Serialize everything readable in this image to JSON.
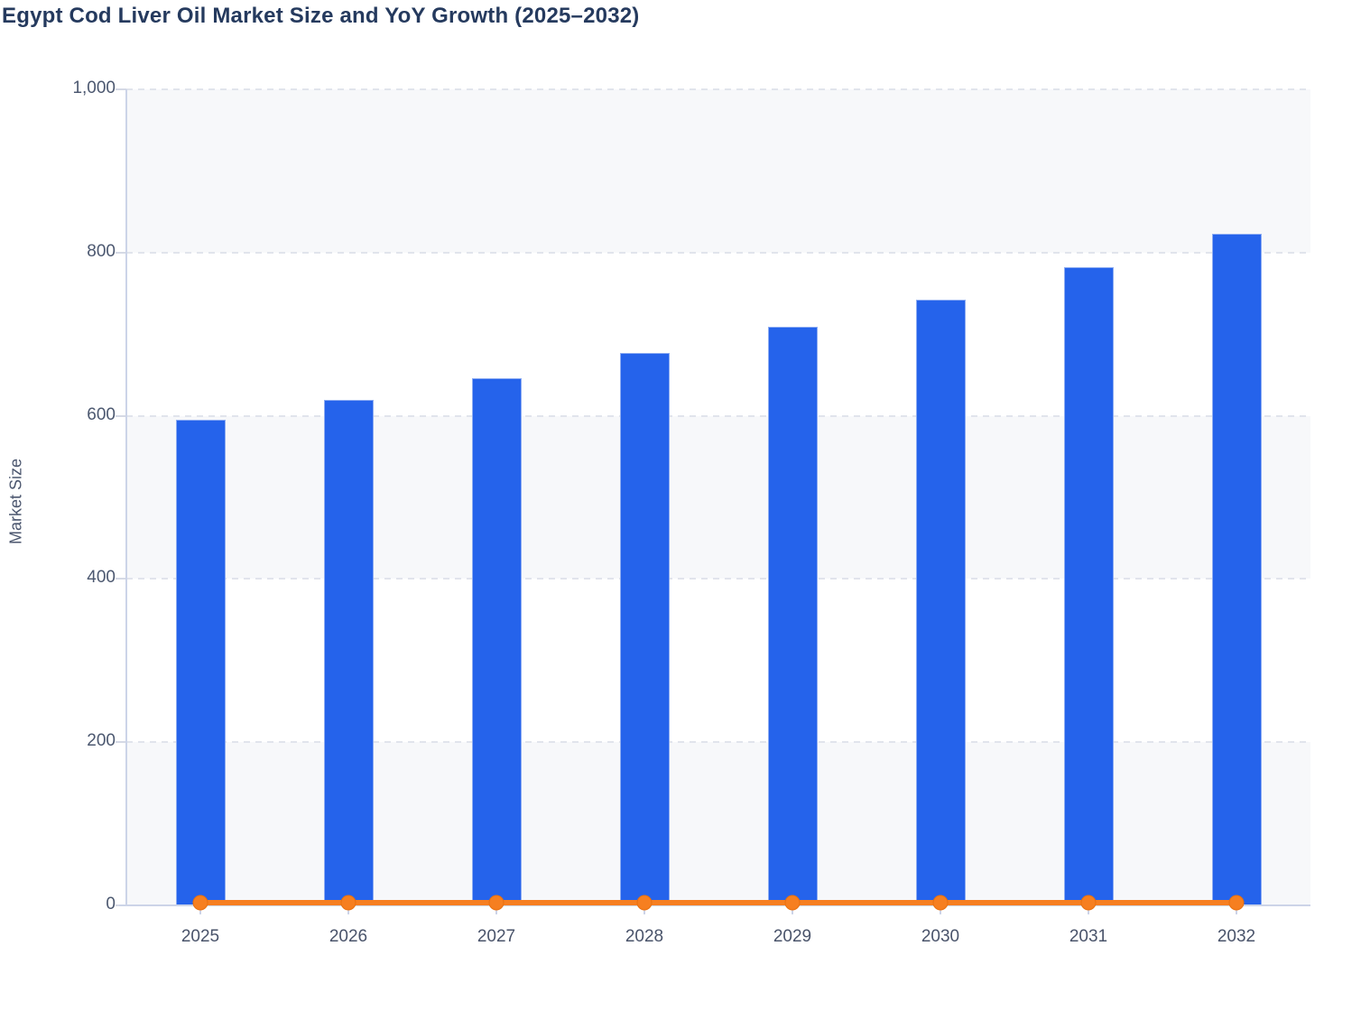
{
  "page": {
    "title": "Egypt Cod Liver Oil Market Size and YoY Growth (2025–2032)"
  },
  "chart_data": {
    "type": "bar",
    "title": "Egypt Cod Liver Oil Market Size and YoY Growth (2025–2032)",
    "xlabel": "",
    "ylabel": "Market Size",
    "categories": [
      "2025",
      "2026",
      "2027",
      "2028",
      "2029",
      "2030",
      "2031",
      "2032"
    ],
    "series": [
      {
        "name": "Market Size",
        "type": "bar",
        "color": "#2563eb",
        "values": [
          595,
          619,
          646,
          677,
          709,
          742,
          782,
          823
        ]
      },
      {
        "name": "YoY Growth",
        "type": "line",
        "color": "#f67f20",
        "marker": "circle",
        "values": [
          0,
          0,
          0,
          0,
          0,
          0,
          0,
          0
        ]
      }
    ],
    "ylim": [
      0,
      1000
    ],
    "yticks": [
      0,
      200,
      400,
      600,
      800,
      1000
    ],
    "ytick_labels": [
      "0",
      "200",
      "400",
      "600",
      "800",
      "1,000"
    ],
    "grid": "horizontal-dashed",
    "plot_bands_alternating": true,
    "legend": "none"
  }
}
